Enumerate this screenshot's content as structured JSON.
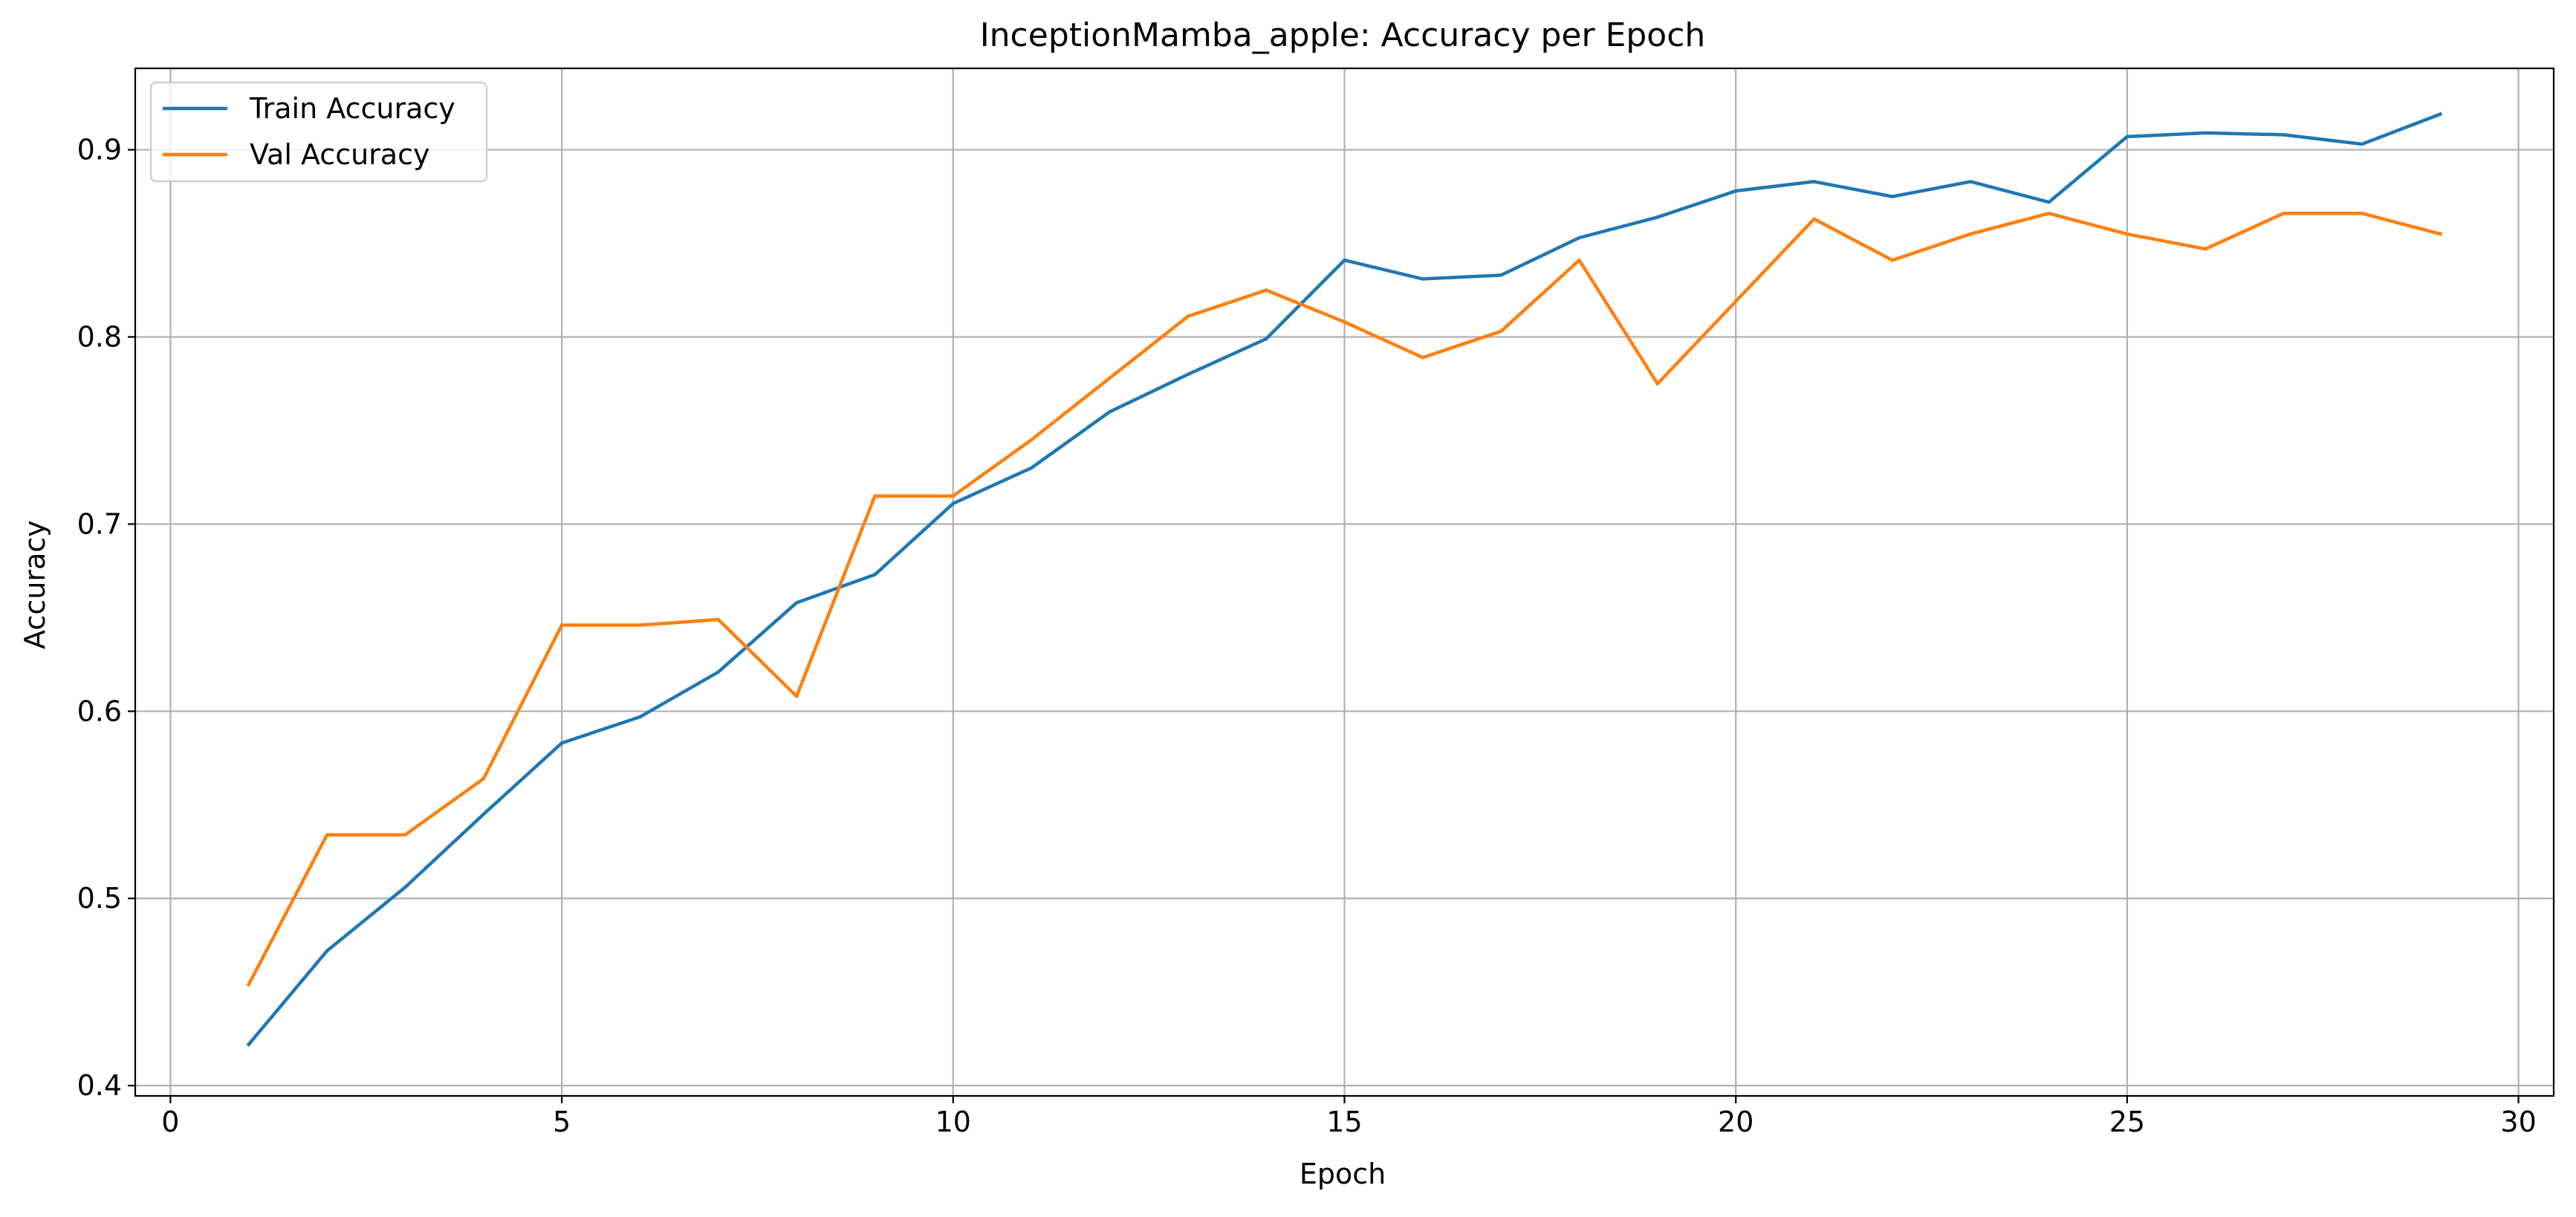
{
  "chart_data": {
    "type": "line",
    "title": "InceptionMamba_apple: Accuracy per Epoch",
    "xlabel": "Epoch",
    "ylabel": "Accuracy",
    "xlim": [
      -0.45,
      30.45
    ],
    "ylim": [
      0.3945,
      0.9435
    ],
    "xticks": [
      0,
      5,
      10,
      15,
      20,
      25,
      30
    ],
    "xtick_labels": [
      "0",
      "5",
      "10",
      "15",
      "20",
      "25",
      "30"
    ],
    "yticks": [
      0.4,
      0.5,
      0.6,
      0.7,
      0.8,
      0.9
    ],
    "ytick_labels": [
      "0.4",
      "0.5",
      "0.6",
      "0.7",
      "0.8",
      "0.9"
    ],
    "grid": true,
    "legend_position": "upper-left",
    "x": [
      1,
      2,
      3,
      4,
      5,
      6,
      7,
      8,
      9,
      10,
      11,
      12,
      13,
      14,
      15,
      16,
      17,
      18,
      19,
      20,
      21,
      22,
      23,
      24,
      25,
      26,
      27,
      28,
      29
    ],
    "series": [
      {
        "name": "Train Accuracy",
        "color": "#1f77b4",
        "values": [
          0.422,
          0.472,
          0.506,
          0.545,
          0.583,
          0.597,
          0.621,
          0.658,
          0.673,
          0.711,
          0.73,
          0.76,
          0.78,
          0.799,
          0.841,
          0.831,
          0.833,
          0.853,
          0.864,
          0.878,
          0.883,
          0.875,
          0.883,
          0.872,
          0.907,
          0.909,
          0.908,
          0.903,
          0.919
        ]
      },
      {
        "name": "Val Accuracy",
        "color": "#ff7f0e",
        "values": [
          0.454,
          0.534,
          0.534,
          0.564,
          0.646,
          0.646,
          0.649,
          0.608,
          0.715,
          0.715,
          0.745,
          0.778,
          0.811,
          0.825,
          0.808,
          0.789,
          0.803,
          0.841,
          0.775,
          0.819,
          0.863,
          0.841,
          0.855,
          0.866,
          0.855,
          0.847,
          0.866,
          0.866,
          0.855
        ]
      }
    ]
  }
}
